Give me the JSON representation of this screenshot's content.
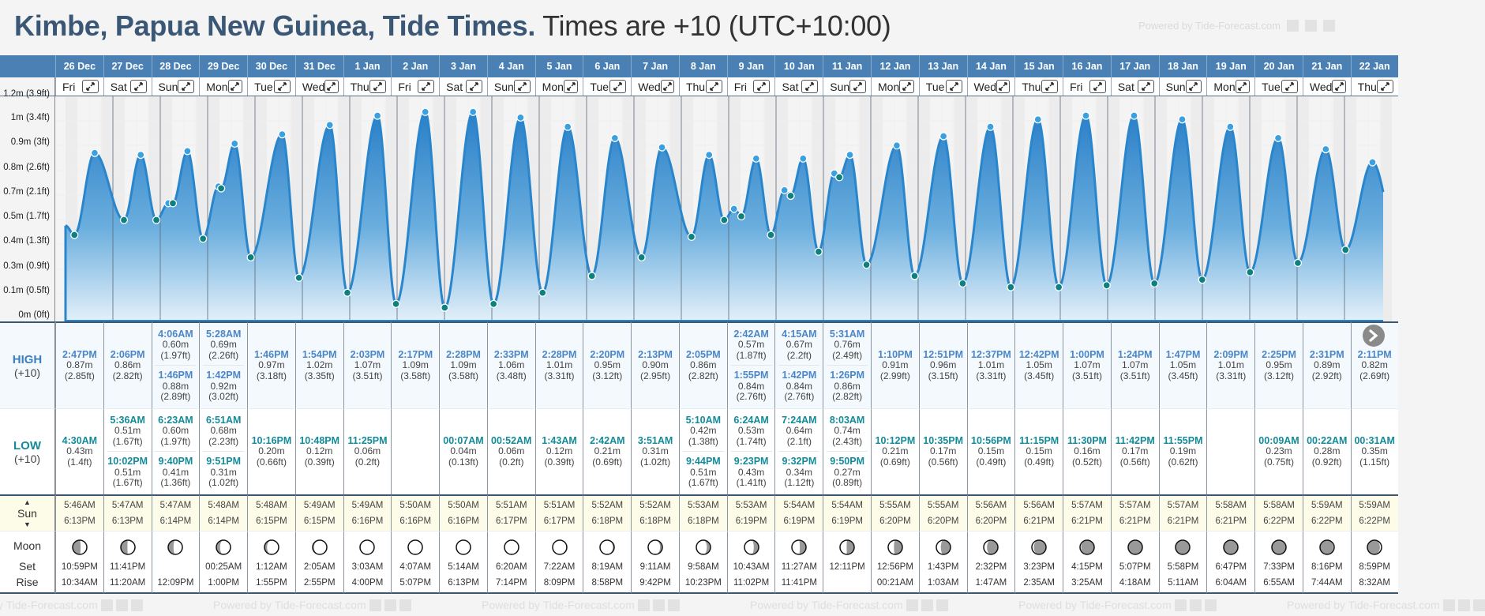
{
  "header": {
    "title": "Kimbe, Papua New Guinea, Tide Times.",
    "subtitle": " Times are +10 (UTC+10:00)",
    "powered_by": "Powered by Tide-Forecast.com"
  },
  "labels": {
    "high": "HIGH",
    "low": "LOW",
    "tz": "(+10)",
    "sun": "Sun",
    "moon": "Moon",
    "set": "Set",
    "rise": "Rise"
  },
  "colors": {
    "header_bg": "#4a80b4",
    "high_time": "#4a86c8",
    "low_time": "#138b99",
    "line": "#2a86cc",
    "high_marker": "#3aa0e0",
    "low_marker": "#0d8080",
    "night": "#ececec"
  },
  "y_axis_labels": [
    "1.2m (3.9ft)",
    "1m (3.4ft)",
    "0.9m (3ft)",
    "0.8m (2.6ft)",
    "0.7m (2.1ft)",
    "0.5m (1.7ft)",
    "0.4m (1.3ft)",
    "0.3m (0.9ft)",
    "0.1m (0.5ft)",
    "0m (0ft)"
  ],
  "chart_start_height_m": 0.48,
  "days": [
    {
      "date": "26 Dec",
      "dow": "Fri",
      "highs": [
        {
          "time": "2:47PM",
          "m": "0.87m",
          "ft": "(2.85ft)"
        }
      ],
      "lows": [
        {
          "time": "4:30AM",
          "m": "0.43m",
          "ft": "(1.4ft)"
        }
      ],
      "sunrise": "5:46AM",
      "sunset": "6:13PM",
      "moonset": "10:59PM",
      "moonrise": "10:34AM",
      "moon_phase": 0.23
    },
    {
      "date": "27 Dec",
      "dow": "Sat",
      "highs": [
        {
          "time": "2:06PM",
          "m": "0.86m",
          "ft": "(2.82ft)"
        }
      ],
      "lows": [
        {
          "time": "5:36AM",
          "m": "0.51m",
          "ft": "(1.67ft)"
        },
        {
          "time": "10:02PM",
          "m": "0.51m",
          "ft": "(1.67ft)"
        }
      ],
      "sunrise": "5:47AM",
      "sunset": "6:13PM",
      "moonset": "11:41PM",
      "moonrise": "11:20AM",
      "moon_phase": 0.26
    },
    {
      "date": "28 Dec",
      "dow": "Sun",
      "highs": [
        {
          "time": "4:06AM",
          "m": "0.60m",
          "ft": "(1.97ft)"
        },
        {
          "time": "1:46PM",
          "m": "0.88m",
          "ft": "(2.89ft)"
        }
      ],
      "lows": [
        {
          "time": "6:23AM",
          "m": "0.60m",
          "ft": "(1.97ft)"
        },
        {
          "time": "9:40PM",
          "m": "0.41m",
          "ft": "(1.36ft)"
        }
      ],
      "sunrise": "5:47AM",
      "sunset": "6:14PM",
      "moonset": "",
      "moonrise": "12:09PM",
      "moon_phase": 0.29
    },
    {
      "date": "29 Dec",
      "dow": "Mon",
      "highs": [
        {
          "time": "5:28AM",
          "m": "0.69m",
          "ft": "(2.26ft)"
        },
        {
          "time": "1:42PM",
          "m": "0.92m",
          "ft": "(3.02ft)"
        }
      ],
      "lows": [
        {
          "time": "6:51AM",
          "m": "0.68m",
          "ft": "(2.23ft)"
        },
        {
          "time": "9:51PM",
          "m": "0.31m",
          "ft": "(1.02ft)"
        }
      ],
      "sunrise": "5:48AM",
      "sunset": "6:14PM",
      "moonset": "00:25AM",
      "moonrise": "1:00PM",
      "moon_phase": 0.33
    },
    {
      "date": "30 Dec",
      "dow": "Tue",
      "highs": [
        {
          "time": "1:46PM",
          "m": "0.97m",
          "ft": "(3.18ft)"
        }
      ],
      "lows": [
        {
          "time": "10:16PM",
          "m": "0.20m",
          "ft": "(0.66ft)"
        }
      ],
      "sunrise": "5:48AM",
      "sunset": "6:15PM",
      "moonset": "1:12AM",
      "moonrise": "1:55PM",
      "moon_phase": 0.36
    },
    {
      "date": "31 Dec",
      "dow": "Wed",
      "highs": [
        {
          "time": "1:54PM",
          "m": "1.02m",
          "ft": "(3.35ft)"
        }
      ],
      "lows": [
        {
          "time": "10:48PM",
          "m": "0.12m",
          "ft": "(0.39ft)"
        }
      ],
      "sunrise": "5:49AM",
      "sunset": "6:15PM",
      "moonset": "2:05AM",
      "moonrise": "2:55PM",
      "moon_phase": 0.4
    },
    {
      "date": "1 Jan",
      "dow": "Thu",
      "highs": [
        {
          "time": "2:03PM",
          "m": "1.07m",
          "ft": "(3.51ft)"
        }
      ],
      "lows": [
        {
          "time": "11:25PM",
          "m": "0.06m",
          "ft": "(0.2ft)"
        }
      ],
      "sunrise": "5:49AM",
      "sunset": "6:16PM",
      "moonset": "3:03AM",
      "moonrise": "4:00PM",
      "moon_phase": 0.43
    },
    {
      "date": "2 Jan",
      "dow": "Fri",
      "highs": [
        {
          "time": "2:17PM",
          "m": "1.09m",
          "ft": "(3.58ft)"
        }
      ],
      "lows": [],
      "sunrise": "5:50AM",
      "sunset": "6:16PM",
      "moonset": "4:07AM",
      "moonrise": "5:07PM",
      "moon_phase": 0.47
    },
    {
      "date": "3 Jan",
      "dow": "Sat",
      "highs": [
        {
          "time": "2:28PM",
          "m": "1.09m",
          "ft": "(3.58ft)"
        }
      ],
      "lows": [
        {
          "time": "00:07AM",
          "m": "0.04m",
          "ft": "(0.13ft)"
        }
      ],
      "sunrise": "5:50AM",
      "sunset": "6:16PM",
      "moonset": "5:14AM",
      "moonrise": "6:13PM",
      "moon_phase": 0.5
    },
    {
      "date": "4 Jan",
      "dow": "Sun",
      "highs": [
        {
          "time": "2:33PM",
          "m": "1.06m",
          "ft": "(3.48ft)"
        }
      ],
      "lows": [
        {
          "time": "00:52AM",
          "m": "0.06m",
          "ft": "(0.2ft)"
        }
      ],
      "sunrise": "5:51AM",
      "sunset": "6:17PM",
      "moonset": "6:20AM",
      "moonrise": "7:14PM",
      "moon_phase": 0.53
    },
    {
      "date": "5 Jan",
      "dow": "Mon",
      "highs": [
        {
          "time": "2:28PM",
          "m": "1.01m",
          "ft": "(3.31ft)"
        }
      ],
      "lows": [
        {
          "time": "1:43AM",
          "m": "0.12m",
          "ft": "(0.39ft)"
        }
      ],
      "sunrise": "5:51AM",
      "sunset": "6:17PM",
      "moonset": "7:22AM",
      "moonrise": "8:09PM",
      "moon_phase": 0.57
    },
    {
      "date": "6 Jan",
      "dow": "Tue",
      "highs": [
        {
          "time": "2:20PM",
          "m": "0.95m",
          "ft": "(3.12ft)"
        }
      ],
      "lows": [
        {
          "time": "2:42AM",
          "m": "0.21m",
          "ft": "(0.69ft)"
        }
      ],
      "sunrise": "5:52AM",
      "sunset": "6:18PM",
      "moonset": "8:19AM",
      "moonrise": "8:58PM",
      "moon_phase": 0.6
    },
    {
      "date": "7 Jan",
      "dow": "Wed",
      "highs": [
        {
          "time": "2:13PM",
          "m": "0.90m",
          "ft": "(2.95ft)"
        }
      ],
      "lows": [
        {
          "time": "3:51AM",
          "m": "0.31m",
          "ft": "(1.02ft)"
        }
      ],
      "sunrise": "5:52AM",
      "sunset": "6:18PM",
      "moonset": "9:11AM",
      "moonrise": "9:42PM",
      "moon_phase": 0.63
    },
    {
      "date": "8 Jan",
      "dow": "Thu",
      "highs": [
        {
          "time": "2:05PM",
          "m": "0.86m",
          "ft": "(2.82ft)"
        }
      ],
      "lows": [
        {
          "time": "5:10AM",
          "m": "0.42m",
          "ft": "(1.38ft)"
        },
        {
          "time": "9:44PM",
          "m": "0.51m",
          "ft": "(1.67ft)"
        }
      ],
      "sunrise": "5:53AM",
      "sunset": "6:18PM",
      "moonset": "9:58AM",
      "moonrise": "10:23PM",
      "moon_phase": 0.67
    },
    {
      "date": "9 Jan",
      "dow": "Fri",
      "highs": [
        {
          "time": "2:42AM",
          "m": "0.57m",
          "ft": "(1.87ft)"
        },
        {
          "time": "1:55PM",
          "m": "0.84m",
          "ft": "(2.76ft)"
        }
      ],
      "lows": [
        {
          "time": "6:24AM",
          "m": "0.53m",
          "ft": "(1.74ft)"
        },
        {
          "time": "9:23PM",
          "m": "0.43m",
          "ft": "(1.41ft)"
        }
      ],
      "sunrise": "5:53AM",
      "sunset": "6:19PM",
      "moonset": "10:43AM",
      "moonrise": "11:02PM",
      "moon_phase": 0.7
    },
    {
      "date": "10 Jan",
      "dow": "Sat",
      "highs": [
        {
          "time": "4:15AM",
          "m": "0.67m",
          "ft": "(2.2ft)"
        },
        {
          "time": "1:42PM",
          "m": "0.84m",
          "ft": "(2.76ft)"
        }
      ],
      "lows": [
        {
          "time": "7:24AM",
          "m": "0.64m",
          "ft": "(2.1ft)"
        },
        {
          "time": "9:32PM",
          "m": "0.34m",
          "ft": "(1.12ft)"
        }
      ],
      "sunrise": "5:54AM",
      "sunset": "6:19PM",
      "moonset": "11:27AM",
      "moonrise": "11:41PM",
      "moon_phase": 0.73
    },
    {
      "date": "11 Jan",
      "dow": "Sun",
      "highs": [
        {
          "time": "5:31AM",
          "m": "0.76m",
          "ft": "(2.49ft)"
        },
        {
          "time": "1:26PM",
          "m": "0.86m",
          "ft": "(2.82ft)"
        }
      ],
      "lows": [
        {
          "time": "8:03AM",
          "m": "0.74m",
          "ft": "(2.43ft)"
        },
        {
          "time": "9:50PM",
          "m": "0.27m",
          "ft": "(0.89ft)"
        }
      ],
      "sunrise": "5:54AM",
      "sunset": "6:19PM",
      "moonset": "12:11PM",
      "moonrise": "",
      "moon_phase": 0.76
    },
    {
      "date": "12 Jan",
      "dow": "Mon",
      "highs": [
        {
          "time": "1:10PM",
          "m": "0.91m",
          "ft": "(2.99ft)"
        }
      ],
      "lows": [
        {
          "time": "10:12PM",
          "m": "0.21m",
          "ft": "(0.69ft)"
        }
      ],
      "sunrise": "5:55AM",
      "sunset": "6:20PM",
      "moonset": "12:56PM",
      "moonrise": "00:21AM",
      "moon_phase": 0.78
    },
    {
      "date": "13 Jan",
      "dow": "Tue",
      "highs": [
        {
          "time": "12:51PM",
          "m": "0.96m",
          "ft": "(3.15ft)"
        }
      ],
      "lows": [
        {
          "time": "10:35PM",
          "m": "0.17m",
          "ft": "(0.56ft)"
        }
      ],
      "sunrise": "5:55AM",
      "sunset": "6:20PM",
      "moonset": "1:43PM",
      "moonrise": "1:03AM",
      "moon_phase": 0.81
    },
    {
      "date": "14 Jan",
      "dow": "Wed",
      "highs": [
        {
          "time": "12:37PM",
          "m": "1.01m",
          "ft": "(3.31ft)"
        }
      ],
      "lows": [
        {
          "time": "10:56PM",
          "m": "0.15m",
          "ft": "(0.49ft)"
        }
      ],
      "sunrise": "5:56AM",
      "sunset": "6:20PM",
      "moonset": "2:32PM",
      "moonrise": "1:47AM",
      "moon_phase": 0.84
    },
    {
      "date": "15 Jan",
      "dow": "Thu",
      "highs": [
        {
          "time": "12:42PM",
          "m": "1.05m",
          "ft": "(3.45ft)"
        }
      ],
      "lows": [
        {
          "time": "11:15PM",
          "m": "0.15m",
          "ft": "(0.49ft)"
        }
      ],
      "sunrise": "5:56AM",
      "sunset": "6:21PM",
      "moonset": "3:23PM",
      "moonrise": "2:35AM",
      "moon_phase": 0.88
    },
    {
      "date": "16 Jan",
      "dow": "Fri",
      "highs": [
        {
          "time": "1:00PM",
          "m": "1.07m",
          "ft": "(3.51ft)"
        }
      ],
      "lows": [
        {
          "time": "11:30PM",
          "m": "0.16m",
          "ft": "(0.52ft)"
        }
      ],
      "sunrise": "5:57AM",
      "sunset": "6:21PM",
      "moonset": "4:15PM",
      "moonrise": "3:25AM",
      "moon_phase": 0.91
    },
    {
      "date": "17 Jan",
      "dow": "Sat",
      "highs": [
        {
          "time": "1:24PM",
          "m": "1.07m",
          "ft": "(3.51ft)"
        }
      ],
      "lows": [
        {
          "time": "11:42PM",
          "m": "0.17m",
          "ft": "(0.56ft)"
        }
      ],
      "sunrise": "5:57AM",
      "sunset": "6:21PM",
      "moonset": "5:07PM",
      "moonrise": "4:18AM",
      "moon_phase": 0.95
    },
    {
      "date": "18 Jan",
      "dow": "Sun",
      "highs": [
        {
          "time": "1:47PM",
          "m": "1.05m",
          "ft": "(3.45ft)"
        }
      ],
      "lows": [
        {
          "time": "11:55PM",
          "m": "0.19m",
          "ft": "(0.62ft)"
        }
      ],
      "sunrise": "5:57AM",
      "sunset": "6:21PM",
      "moonset": "5:58PM",
      "moonrise": "5:11AM",
      "moon_phase": 0.99
    },
    {
      "date": "19 Jan",
      "dow": "Mon",
      "highs": [
        {
          "time": "2:09PM",
          "m": "1.01m",
          "ft": "(3.31ft)"
        }
      ],
      "lows": [],
      "sunrise": "5:58AM",
      "sunset": "6:21PM",
      "moonset": "6:47PM",
      "moonrise": "6:04AM",
      "moon_phase": 0.01
    },
    {
      "date": "20 Jan",
      "dow": "Tue",
      "highs": [
        {
          "time": "2:25PM",
          "m": "0.95m",
          "ft": "(3.12ft)"
        }
      ],
      "lows": [
        {
          "time": "00:09AM",
          "m": "0.23m",
          "ft": "(0.75ft)"
        }
      ],
      "sunrise": "5:58AM",
      "sunset": "6:22PM",
      "moonset": "7:33PM",
      "moonrise": "6:55AM",
      "moon_phase": 0.04
    },
    {
      "date": "21 Jan",
      "dow": "Wed",
      "highs": [
        {
          "time": "2:31PM",
          "m": "0.89m",
          "ft": "(2.92ft)"
        }
      ],
      "lows": [
        {
          "time": "00:22AM",
          "m": "0.28m",
          "ft": "(0.92ft)"
        }
      ],
      "sunrise": "5:59AM",
      "sunset": "6:22PM",
      "moonset": "8:16PM",
      "moonrise": "7:44AM",
      "moon_phase": 0.08
    },
    {
      "date": "22 Jan",
      "dow": "Thu",
      "highs": [
        {
          "time": "2:11PM",
          "m": "0.82m",
          "ft": "(2.69ft)"
        }
      ],
      "lows": [
        {
          "time": "00:31AM",
          "m": "0.35m",
          "ft": "(1.15ft)"
        }
      ],
      "sunrise": "5:59AM",
      "sunset": "6:22PM",
      "moonset": "8:59PM",
      "moonrise": "8:32AM",
      "moon_phase": 0.11
    }
  ]
}
